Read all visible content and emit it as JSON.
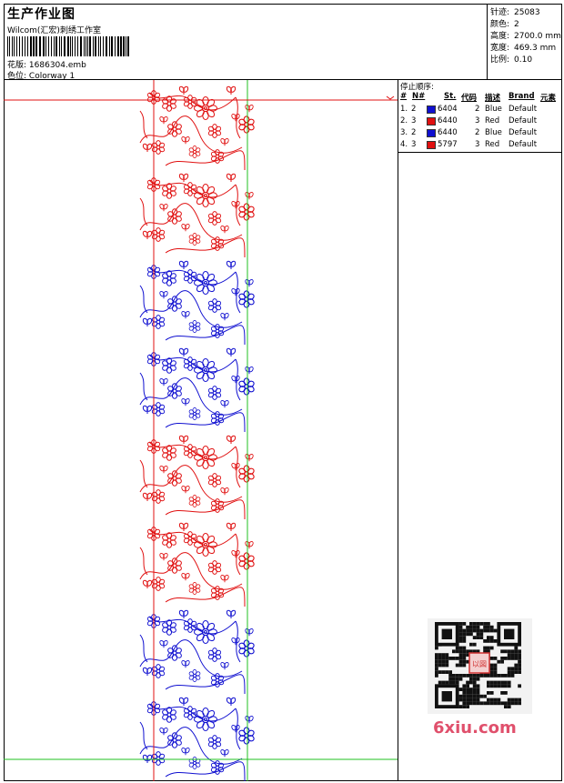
{
  "header": {
    "title": "生产作业图",
    "company": "Wilcom(汇宏)刺绣工作室",
    "design_label": "花版:",
    "design_value": "1686304.emb",
    "colorway_label": "色位:",
    "colorway_value": "Colorway 1"
  },
  "stats": [
    {
      "label": "针迹:",
      "value": "25083"
    },
    {
      "label": "颜色:",
      "value": "2"
    },
    {
      "label": "高度:",
      "value": "2700.0 mm"
    },
    {
      "label": "宽度:",
      "value": "469.3 mm"
    },
    {
      "label": "比例:",
      "value": "0.10"
    }
  ],
  "stop_sequence": {
    "caption": "停止顺序:",
    "headers": [
      "#",
      "N#",
      "St.",
      "代码",
      "描述",
      "Brand",
      "元素"
    ],
    "rows": [
      {
        "idx": "1.",
        "n": "2",
        "code": "6404",
        "st": "2",
        "desc": "Blue",
        "brand": "Default",
        "color": "#1010d0"
      },
      {
        "idx": "2.",
        "n": "3",
        "code": "6440",
        "st": "3",
        "desc": "Red",
        "brand": "Default",
        "color": "#e01010"
      },
      {
        "idx": "3.",
        "n": "2",
        "code": "6440",
        "st": "2",
        "desc": "Blue",
        "brand": "Default",
        "color": "#1010d0"
      },
      {
        "idx": "4.",
        "n": "3",
        "code": "5797",
        "st": "3",
        "desc": "Red",
        "brand": "Default",
        "color": "#e01010"
      }
    ]
  },
  "design": {
    "segments": [
      {
        "color": "#e01010"
      },
      {
        "color": "#e01010"
      },
      {
        "color": "#1010d0"
      },
      {
        "color": "#1010d0"
      },
      {
        "color": "#e01010"
      },
      {
        "color": "#e01010"
      },
      {
        "color": "#1010d0"
      },
      {
        "color": "#1010d0"
      }
    ],
    "guide_red": "#e01010",
    "guide_green": "#20c020"
  },
  "watermark": {
    "text": "6xiu.com",
    "stamp": "以図回図"
  }
}
